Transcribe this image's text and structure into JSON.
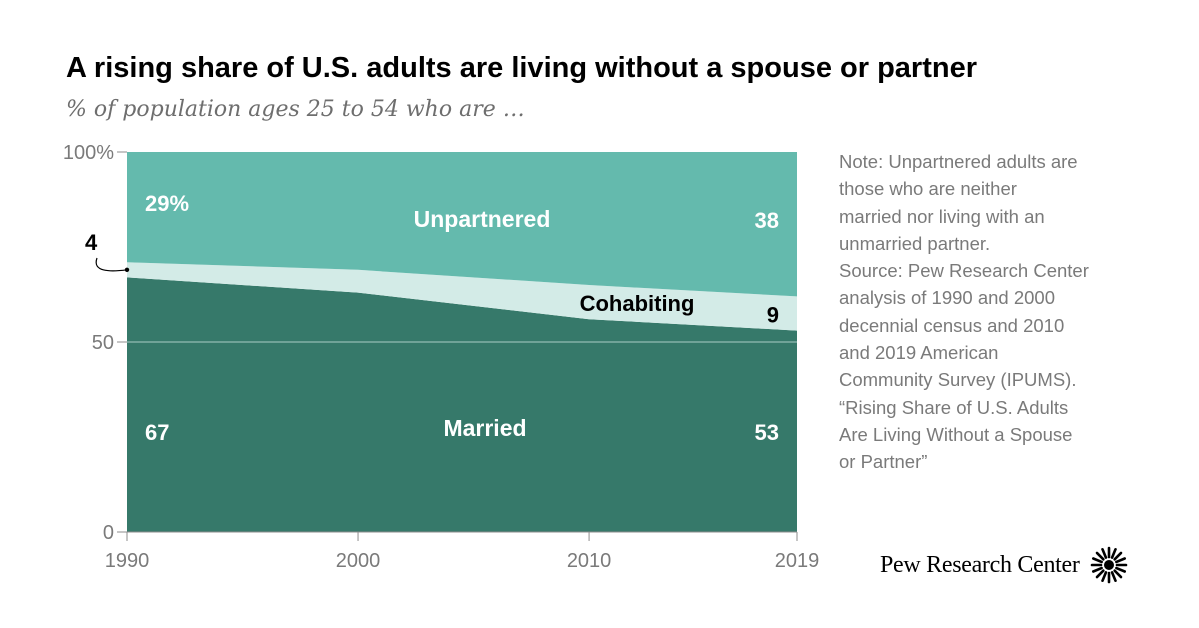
{
  "header": {
    "title": "A rising share of U.S. adults are living without a spouse or partner",
    "subtitle": "% of population ages 25 to 54 who are …"
  },
  "note": [
    "Note: Unpartnered adults are",
    "those who are neither",
    "married nor living with an",
    "unmarried partner.",
    "Source: Pew Research Center",
    "analysis of 1990 and 2000",
    "decennial census and 2010",
    "and 2019 American",
    "Community Survey (IPUMS).",
    "“Rising Share of U.S. Adults",
    "Are Living Without a Spouse",
    "or Partner”"
  ],
  "logo": {
    "text": "Pew Research Center",
    "icon": "pew-starburst-icon"
  },
  "colors": {
    "married": "#36796a",
    "cohabiting": "#d3ebe7",
    "unpartnered": "#64baad",
    "axis": "#8c8c8c"
  },
  "chart_data": {
    "type": "area",
    "stacked": true,
    "title": "A rising share of U.S. adults are living without a spouse or partner",
    "subtitle": "% of population ages 25 to 54 who are …",
    "x": [
      1990,
      2000,
      2010,
      2019
    ],
    "x_tick_labels": [
      "1990",
      "2000",
      "2010",
      "2019"
    ],
    "ylim": [
      0,
      100
    ],
    "y_ticks": [
      0,
      50,
      100
    ],
    "y_tick_labels": [
      "0",
      "50",
      "100%"
    ],
    "grid": false,
    "series": [
      {
        "name": "Married",
        "values": [
          67,
          63,
          56,
          53
        ]
      },
      {
        "name": "Cohabiting",
        "values": [
          4,
          6,
          9,
          9
        ]
      },
      {
        "name": "Unpartnered",
        "values": [
          29,
          31,
          35,
          38
        ]
      }
    ],
    "data_labels": [
      {
        "series": "Unpartnered",
        "x": 1990,
        "text": "29%"
      },
      {
        "series": "Unpartnered",
        "x": 2019,
        "text": "38"
      },
      {
        "series": "Cohabiting",
        "x": 1990,
        "text": "4"
      },
      {
        "series": "Cohabiting",
        "x": 2019,
        "text": "9"
      },
      {
        "series": "Married",
        "x": 1990,
        "text": "67"
      },
      {
        "series": "Married",
        "x": 2019,
        "text": "53"
      }
    ]
  }
}
